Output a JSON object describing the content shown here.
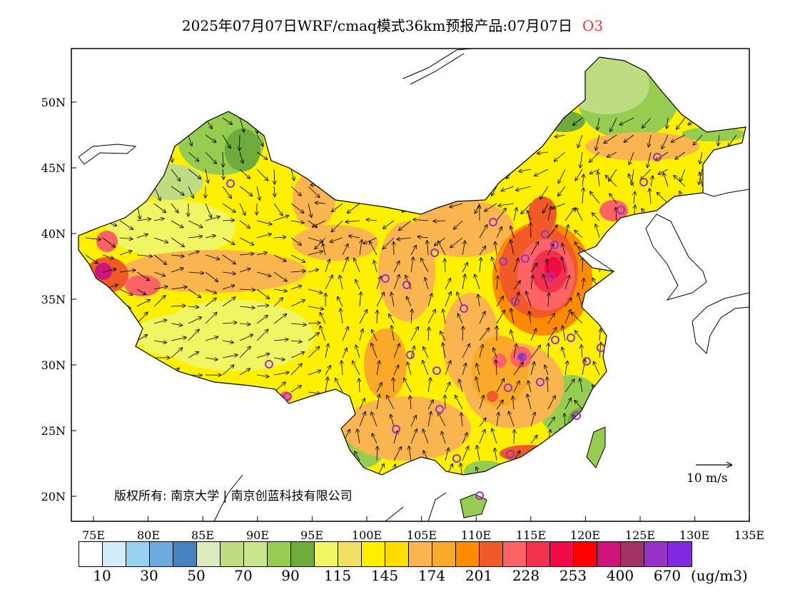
{
  "header": {
    "title": "2025年07月07日WRF/cmaq模式36km预报产品:07月07日",
    "species": "O3"
  },
  "map": {
    "lat_labels": [
      "50N",
      "45N",
      "40N",
      "35N",
      "30N",
      "25N",
      "20N"
    ],
    "lon_labels": [
      "75E",
      "80E",
      "85E",
      "90E",
      "95E",
      "100E",
      "105E",
      "110E",
      "115E",
      "120E",
      "125E",
      "130E",
      "135E"
    ]
  },
  "copyright": "版权所有: 南京大学 | 南京创蓝科技有限公司",
  "wind_legend": {
    "label": "10  m/s"
  },
  "colorbar": {
    "colors": [
      "#ffffff",
      "#d2ecfa",
      "#96d2f0",
      "#6aaadc",
      "#4682be",
      "#dcebbe",
      "#bedc82",
      "#c8e68c",
      "#96cd50",
      "#6eaa3c",
      "#f0f564",
      "#f0e164",
      "#fff000",
      "#ffdc00",
      "#fab450",
      "#faaa28",
      "#ff8c00",
      "#f05a28",
      "#ff6464",
      "#f03250",
      "#f00a46",
      "#ff0000",
      "#cd1478",
      "#a03264",
      "#9632c8",
      "#8228dc"
    ],
    "labels": [
      "10",
      "30",
      "50",
      "70",
      "90",
      "115",
      "145",
      "174",
      "201",
      "228",
      "253",
      "400",
      "670"
    ],
    "unit": "(ug/m3)"
  },
  "colors": {
    "outer_sea": "#ffffff",
    "base_ozone": "#fff000",
    "high_ozone": "#f03250",
    "low_ozone": "#96cd50",
    "city_marker": "#9632c8"
  }
}
